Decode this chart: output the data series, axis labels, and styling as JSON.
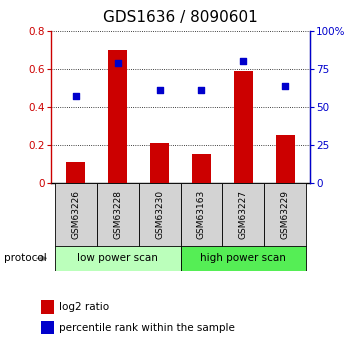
{
  "title": "GDS1636 / 8090601",
  "samples": [
    "GSM63226",
    "GSM63228",
    "GSM63230",
    "GSM63163",
    "GSM63227",
    "GSM63229"
  ],
  "log2_ratio": [
    0.11,
    0.7,
    0.21,
    0.15,
    0.59,
    0.25
  ],
  "percentile_rank": [
    57,
    79,
    61,
    61,
    80,
    64
  ],
  "bar_color": "#cc0000",
  "dot_color": "#0000cc",
  "ylim_left": [
    0,
    0.8
  ],
  "ylim_right": [
    0,
    100
  ],
  "yticks_left": [
    0,
    0.2,
    0.4,
    0.6,
    0.8
  ],
  "ytick_labels_left": [
    "0",
    "0.2",
    "0.4",
    "0.6",
    "0.8"
  ],
  "yticks_right": [
    0,
    25,
    50,
    75,
    100
  ],
  "ytick_labels_right": [
    "0",
    "25",
    "50",
    "75",
    "100%"
  ],
  "group1_label": "low power scan",
  "group2_label": "high power scan",
  "protocol_label": "protocol",
  "group1_color": "#bbffbb",
  "group2_color": "#55ee55",
  "group1_indices": [
    0,
    1,
    2
  ],
  "group2_indices": [
    3,
    4,
    5
  ],
  "legend_bar_label": "log2 ratio",
  "legend_dot_label": "percentile rank within the sample",
  "title_fontsize": 11,
  "axis_fontsize": 7.5,
  "sample_fontsize": 6.5,
  "legend_fontsize": 7.5,
  "proto_fontsize": 7.5,
  "bar_width": 0.45
}
